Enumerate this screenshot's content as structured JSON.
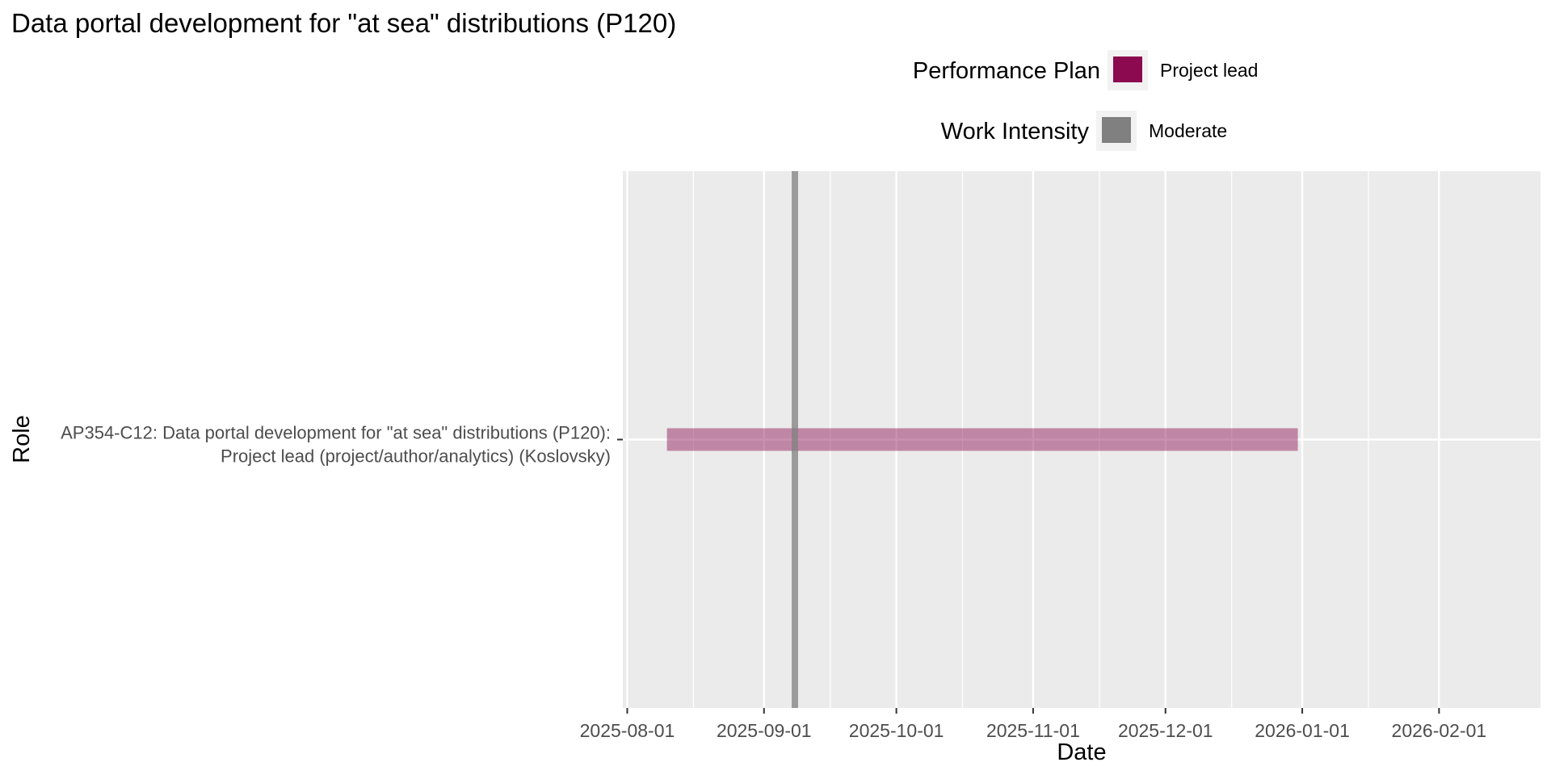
{
  "chart_data": {
    "type": "gantt",
    "title": "Data portal development for \"at sea\" distributions (P120)",
    "xlabel": "Date",
    "ylabel": "Role",
    "x_axis_type": "date",
    "xlim": [
      "2025-07-31",
      "2026-02-24"
    ],
    "x_ticks": [
      "2025-08-01",
      "2025-09-01",
      "2025-10-01",
      "2025-11-01",
      "2025-12-01",
      "2026-01-01",
      "2026-02-01"
    ],
    "grid": true,
    "panel_background": "#ebebeb",
    "gridline_color": "#ffffff",
    "categories": [
      {
        "line1": "AP354-C12: Data portal development for \"at sea\" distributions (P120):",
        "line2": "Project lead (project/author/analytics) (Koslovsky)"
      }
    ],
    "tasks": [
      {
        "category_index": 0,
        "start": "2025-08-10",
        "end": "2025-12-31",
        "plan": "Project lead",
        "color": "#8b0a50",
        "opacity": 0.45
      }
    ],
    "markers": [
      {
        "date": "2025-09-08",
        "intensity": "Moderate",
        "color": "#808080",
        "opacity": 0.75
      }
    ],
    "legend": [
      {
        "title": "Performance Plan",
        "entries": [
          {
            "label": "Project lead",
            "color": "#8b0a50"
          }
        ]
      },
      {
        "title": "Work Intensity",
        "entries": [
          {
            "label": "Moderate",
            "color": "#808080"
          }
        ]
      }
    ],
    "legend_position": "top"
  }
}
